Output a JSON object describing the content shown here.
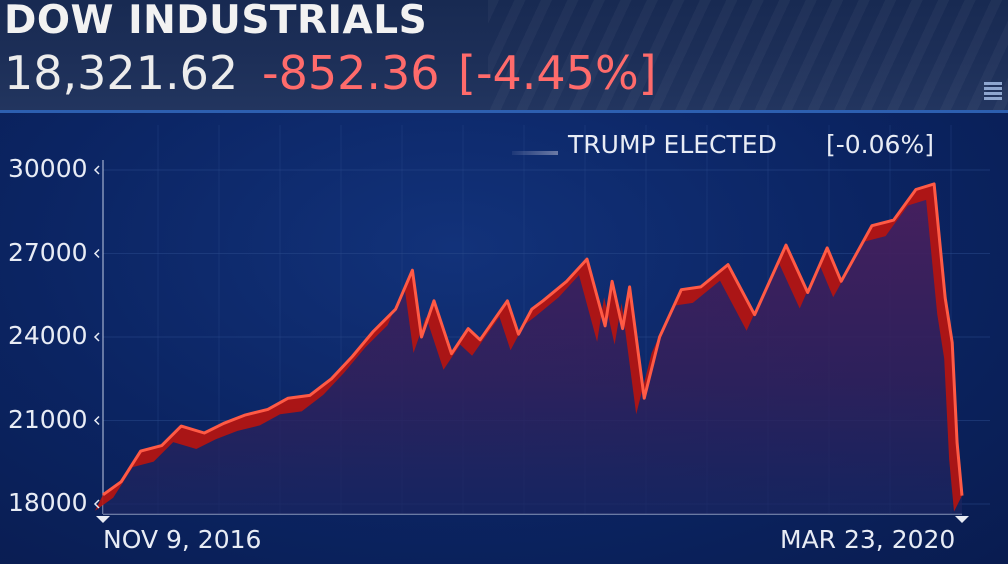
{
  "header": {
    "title": "DOW INDUSTRIALS",
    "price": "18,321.62",
    "change": "-852.36",
    "change_pct": "[-4.45%]"
  },
  "legend": {
    "label": "TRUMP ELECTED",
    "value": "[-0.06%]"
  },
  "colors": {
    "background": "#0b2462",
    "line": "#ff5a45",
    "ribbon": "#c8160f",
    "area": "#3b1f5a",
    "negative": "#ff6b6b"
  },
  "icons": [
    "menu-icon"
  ],
  "chart_data": {
    "type": "line",
    "x": [
      "2016-11-09",
      "2016-12-05",
      "2017-01-02",
      "2017-02-01",
      "2017-03-01",
      "2017-04-03",
      "2017-05-01",
      "2017-06-01",
      "2017-07-03",
      "2017-08-01",
      "2017-09-01",
      "2017-10-02",
      "2017-11-01",
      "2017-12-01",
      "2018-01-02",
      "2018-01-26",
      "2018-02-08",
      "2018-02-26",
      "2018-03-23",
      "2018-04-16",
      "2018-05-03",
      "2018-06-11",
      "2018-06-27",
      "2018-07-16",
      "2018-08-01",
      "2018-09-04",
      "2018-10-03",
      "2018-10-29",
      "2018-11-08",
      "2018-11-23",
      "2018-12-03",
      "2018-12-24",
      "2019-01-15",
      "2019-02-15",
      "2019-03-15",
      "2019-04-23",
      "2019-05-31",
      "2019-07-15",
      "2019-08-15",
      "2019-09-12",
      "2019-10-02",
      "2019-11-15",
      "2019-12-16",
      "2020-01-17",
      "2020-02-12",
      "2020-02-28",
      "2020-03-09",
      "2020-03-16",
      "2020-03-23"
    ],
    "series": [
      {
        "values": [
          18330,
          18800,
          19900,
          20100,
          20800,
          20550,
          20900,
          21200,
          21400,
          21800,
          21900,
          22500,
          23300,
          24200,
          25000,
          26400,
          24000,
          25300,
          23400,
          24300,
          23900,
          25300,
          24100,
          25000,
          25300,
          26000,
          26800,
          24400,
          26000,
          24300,
          25800,
          21800,
          24000,
          25700,
          25800,
          26600,
          24800,
          27300,
          25600,
          27200,
          26000,
          28000,
          28200,
          29300,
          29500,
          25400,
          23800,
          20200,
          18300
        ]
      }
    ],
    "xlabel": "",
    "ylabel": "",
    "ylim": [
      17800,
      30600
    ],
    "yticks": [
      "18000",
      "21000",
      "24000",
      "27000",
      "30000"
    ],
    "x_tick_labels": [
      "NOV 9, 2016",
      "MAR 23, 2020"
    ],
    "grid": true,
    "legend_position": "top-right"
  }
}
